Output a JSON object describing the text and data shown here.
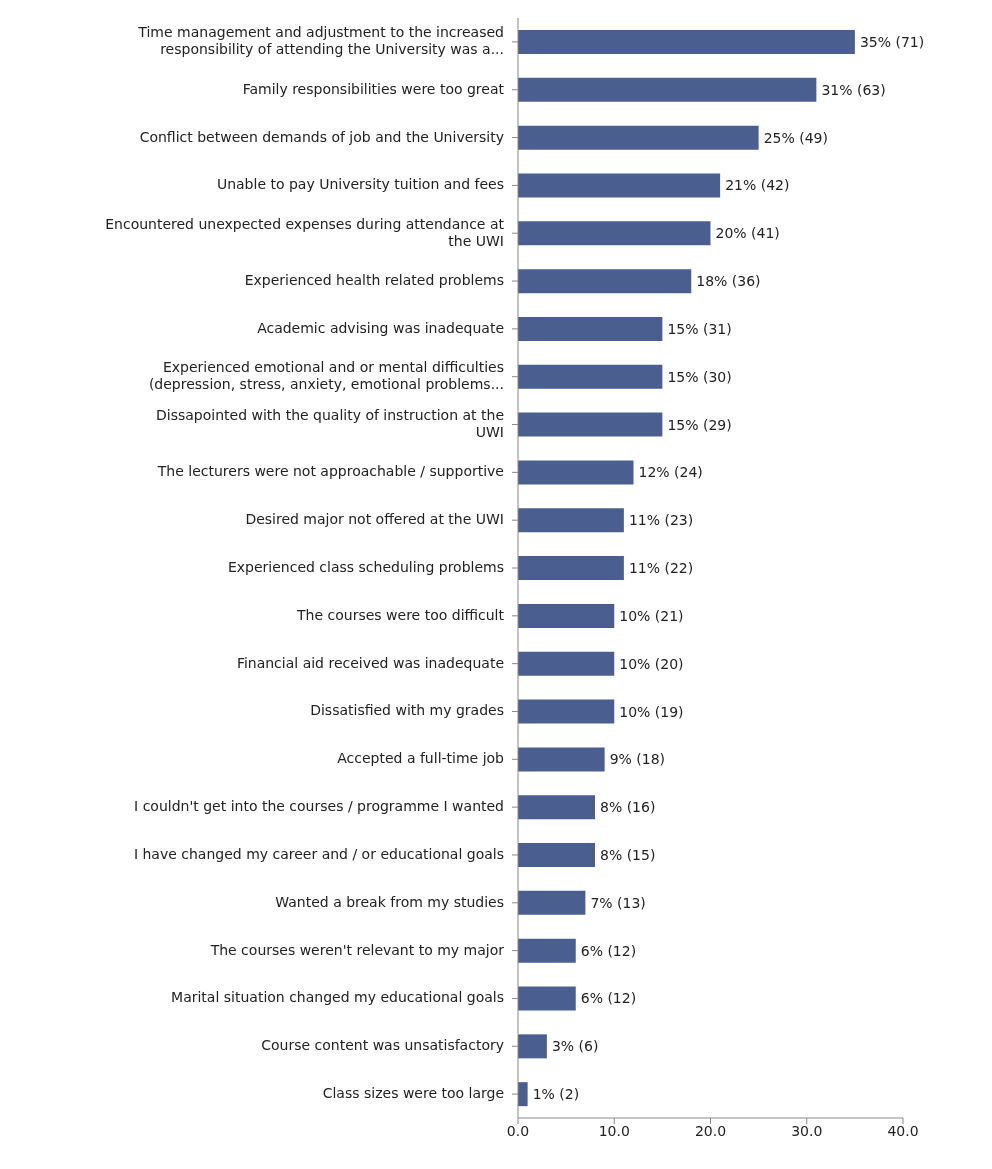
{
  "chart_data": {
    "type": "bar",
    "orientation": "horizontal",
    "categories": [
      "Time management and adjustment to the increased responsibility of attending the University was a...",
      "Family responsibilities were too great",
      "Conflict between demands of job and the University",
      "Unable to pay University tuition and fees",
      "Encountered unexpected expenses during attendance at the UWI",
      "Experienced health related problems",
      "Academic advising was inadequate",
      "Experienced emotional and or mental difficulties (depression, stress, anxiety, emotional problems...",
      "Dissapointed with the quality of instruction at the UWI",
      "The lecturers were not approachable / supportive",
      "Desired major not offered at the UWI",
      "Experienced class scheduling problems",
      "The courses were too difficult",
      "Financial aid received was inadequate",
      "Dissatisfied with my grades",
      "Accepted a full-time job",
      "I couldn't get into the courses / programme I wanted",
      "I have changed my career and / or educational goals",
      "Wanted a break from my studies",
      "The courses weren't relevant to my major",
      "Marital situation changed my educational goals",
      "Course content was unsatisfactory",
      "Class sizes were too large"
    ],
    "values": [
      35,
      31,
      25,
      21,
      20,
      18,
      15,
      15,
      15,
      12,
      11,
      11,
      10,
      10,
      10,
      9,
      8,
      8,
      7,
      6,
      6,
      3,
      1
    ],
    "value_labels": [
      "35% (71)",
      "31% (63)",
      "25% (49)",
      "21% (42)",
      "20% (41)",
      "18% (36)",
      "15% (31)",
      "15% (30)",
      "15% (29)",
      "12% (24)",
      "11% (23)",
      "11% (22)",
      "10% (21)",
      "10% (20)",
      "10% (19)",
      "9% (18)",
      "8% (16)",
      "8% (15)",
      "7% (13)",
      "6% (12)",
      "6% (12)",
      "3% (6)",
      "1% (2)"
    ],
    "color": "#4a5f8f",
    "xlim": [
      0,
      40
    ],
    "xticks": [
      {
        "value": 0,
        "label": "0.0"
      },
      {
        "value": 10,
        "label": "10.0"
      },
      {
        "value": 20,
        "label": "20.0"
      },
      {
        "value": 30,
        "label": "30.0"
      },
      {
        "value": 40,
        "label": "40.0"
      }
    ],
    "grid": false,
    "legend": false
  }
}
